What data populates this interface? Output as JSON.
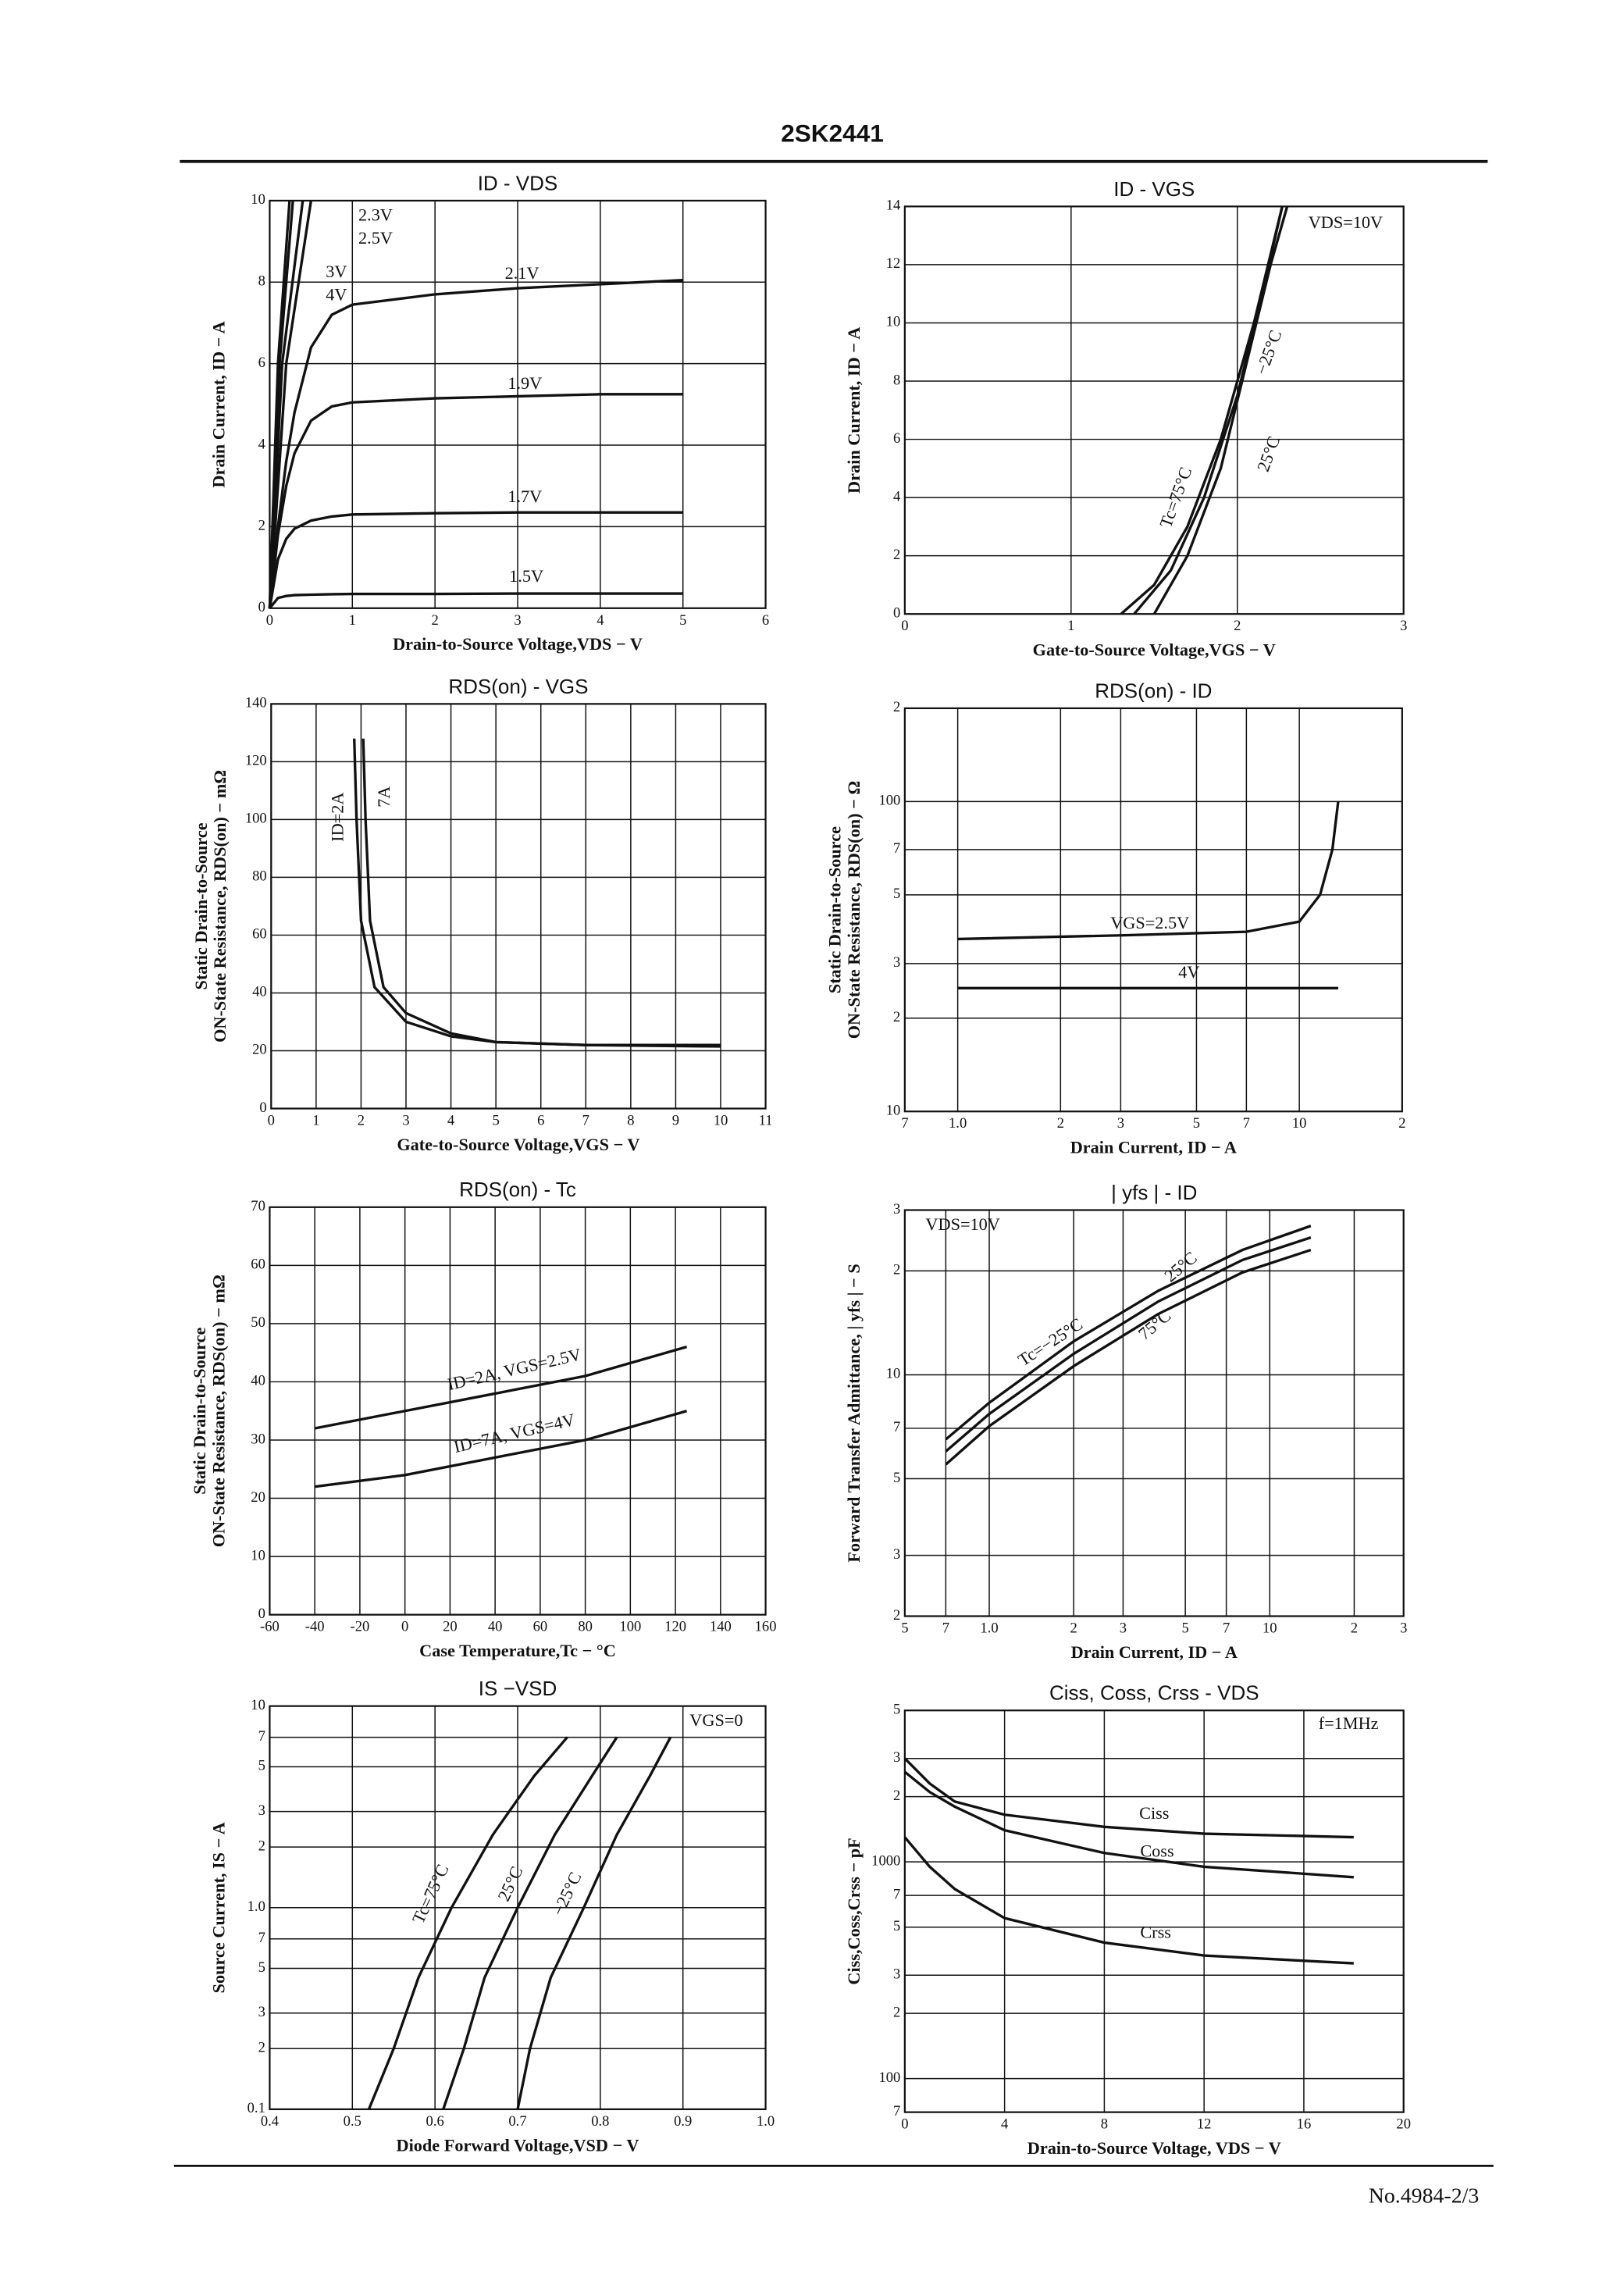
{
  "header": {
    "title": "2SK2441"
  },
  "footer": {
    "text": "No.4984-2/3"
  },
  "chart_data": [
    {
      "type": "line",
      "title": "ID  -  VDS",
      "xlabel": "Drain-to-Source Voltage,VDS − V",
      "ylabel": [
        "Drain Current, ID − A"
      ],
      "color": "#111",
      "grid": true,
      "xlim": [
        0,
        6
      ],
      "xticks": [
        0,
        1,
        2,
        3,
        4,
        5,
        6
      ],
      "ylim": [
        0,
        10
      ],
      "yticks": [
        0,
        2,
        4,
        6,
        8,
        10
      ],
      "series": [
        {
          "name": "1.5V",
          "x": [
            0,
            0.1,
            0.2,
            0.3,
            0.5,
            0.75,
            1,
            2,
            3,
            4,
            5
          ],
          "values": [
            0,
            0.25,
            0.3,
            0.32,
            0.33,
            0.34,
            0.35,
            0.35,
            0.36,
            0.36,
            0.36
          ]
        },
        {
          "name": "1.7V",
          "x": [
            0,
            0.1,
            0.2,
            0.3,
            0.5,
            0.75,
            1,
            2,
            3,
            4,
            5
          ],
          "values": [
            0,
            1.2,
            1.7,
            1.95,
            2.15,
            2.25,
            2.3,
            2.33,
            2.35,
            2.35,
            2.35
          ]
        },
        {
          "name": "1.9V",
          "x": [
            0,
            0.1,
            0.2,
            0.3,
            0.5,
            0.75,
            1,
            2,
            3,
            4,
            5
          ],
          "values": [
            0,
            1.8,
            3,
            3.8,
            4.6,
            4.95,
            5.05,
            5.15,
            5.2,
            5.25,
            5.25
          ]
        },
        {
          "name": "2.1V",
          "x": [
            0,
            0.1,
            0.2,
            0.3,
            0.5,
            0.75,
            1,
            2,
            3,
            4,
            5
          ],
          "values": [
            0,
            2,
            3.6,
            4.8,
            6.4,
            7.2,
            7.45,
            7.7,
            7.85,
            7.95,
            8.05
          ]
        },
        {
          "name": "2.3V",
          "x": [
            0,
            0.2,
            0.5
          ],
          "values": [
            0,
            6,
            10
          ]
        },
        {
          "name": "2.5V",
          "x": [
            0,
            0.15,
            0.4
          ],
          "values": [
            0,
            6,
            10
          ]
        },
        {
          "name": "3V",
          "x": [
            0,
            0.12,
            0.28
          ],
          "values": [
            0,
            6,
            10
          ]
        },
        {
          "name": "4V",
          "x": [
            0,
            0.1,
            0.24
          ],
          "values": [
            0,
            6,
            10
          ]
        }
      ]
    },
    {
      "type": "line",
      "title": "ID  -  VGS",
      "xlabel": "Gate-to-Source Voltage,VGS − V",
      "ylabel": [
        "Drain Current, ID − A"
      ],
      "color": "#111",
      "grid": true,
      "xlim": [
        0,
        3
      ],
      "xticks": [
        0,
        1,
        2,
        3
      ],
      "ylim": [
        0,
        14
      ],
      "yticks": [
        0,
        2,
        4,
        6,
        8,
        10,
        12,
        14
      ],
      "annotations": [
        "VDS=10V"
      ],
      "series": [
        {
          "name": "Tc=75°C",
          "x": [
            1.3,
            1.5,
            1.7,
            1.9,
            2.1,
            2.27
          ],
          "values": [
            0,
            1,
            3,
            6,
            10,
            14
          ]
        },
        {
          "name": "25°C",
          "x": [
            1.38,
            1.6,
            1.8,
            2,
            2.15,
            2.27
          ],
          "values": [
            0,
            1.5,
            4,
            7.5,
            11,
            14
          ]
        },
        {
          "name": "−25°C",
          "x": [
            1.5,
            1.7,
            1.9,
            2.05,
            2.2,
            2.3
          ],
          "values": [
            0,
            2,
            5,
            8.5,
            12,
            14
          ]
        }
      ]
    },
    {
      "type": "line",
      "title": "RDS(on)  -  VGS",
      "xlabel": "Gate-to-Source Voltage,VGS − V",
      "ylabel": [
        "Static Drain-to-Source",
        "ON-State Resistance, RDS(on) − mΩ"
      ],
      "color": "#111",
      "grid": true,
      "xlim": [
        0,
        11
      ],
      "xticks": [
        0,
        1,
        2,
        3,
        4,
        5,
        6,
        7,
        8,
        9,
        10,
        11
      ],
      "ylim": [
        0,
        140
      ],
      "yticks": [
        0,
        20,
        40,
        60,
        80,
        100,
        120,
        140
      ],
      "series": [
        {
          "name": "ID=2A",
          "x": [
            1.85,
            1.9,
            2,
            2.3,
            3,
            4,
            5,
            7,
            10
          ],
          "values": [
            128,
            100,
            65,
            42,
            30,
            25,
            23,
            22,
            22
          ]
        },
        {
          "name": "7A",
          "x": [
            2.05,
            2.1,
            2.2,
            2.5,
            3,
            4,
            5,
            7,
            10
          ],
          "values": [
            128,
            100,
            65,
            42,
            33,
            26,
            23,
            22,
            21.5
          ]
        }
      ]
    },
    {
      "type": "line",
      "title": "RDS(on)  -  ID",
      "xlabel": "Drain Current, ID − A",
      "ylabel": [
        "Static Drain-to-Source",
        "ON-State Resistance, RDS(on) − Ω"
      ],
      "color": "#111",
      "grid": true,
      "xlog": true,
      "ylog": true,
      "xlim": [
        0.7,
        20
      ],
      "xticks": [
        {
          "value": 0.7,
          "label": "7"
        },
        {
          "value": 1,
          "label": "1.0"
        },
        2,
        3,
        5,
        7,
        10,
        {
          "value": 20,
          "label": "2"
        }
      ],
      "ylim": [
        10,
        200
      ],
      "yticks": [
        10,
        {
          "value": 20,
          "label": "2"
        },
        {
          "value": 30,
          "label": "3"
        },
        {
          "value": 50,
          "label": "5"
        },
        {
          "value": 70,
          "label": "7"
        },
        100,
        {
          "value": 200,
          "label": "2"
        }
      ],
      "series": [
        {
          "name": "VGS=2.5V",
          "x": [
            1,
            3,
            7,
            10,
            11.5,
            12.5,
            13
          ],
          "values": [
            36,
            37,
            38,
            41,
            50,
            70,
            100
          ]
        },
        {
          "name": "4V",
          "x": [
            1,
            13
          ],
          "values": [
            25,
            25
          ]
        }
      ]
    },
    {
      "type": "line",
      "title": "RDS(on)  -  Tc",
      "xlabel": "Case Temperature,Tc − °C",
      "ylabel": [
        "Static Drain-to-Source",
        "ON-State Resistance, RDS(on) − mΩ"
      ],
      "color": "#111",
      "grid": true,
      "xlim": [
        -60,
        160
      ],
      "xticks": [
        -60,
        -40,
        -20,
        0,
        20,
        40,
        60,
        80,
        100,
        120,
        140,
        160
      ],
      "ylim": [
        0,
        70
      ],
      "yticks": [
        0,
        10,
        20,
        30,
        40,
        50,
        60,
        70
      ],
      "series": [
        {
          "name": "ID=2A, VGS=2.5V",
          "x": [
            -40,
            0,
            40,
            80,
            125
          ],
          "values": [
            32,
            35,
            38,
            41,
            46
          ]
        },
        {
          "name": "ID=7A, VGS=4V",
          "x": [
            -40,
            0,
            40,
            80,
            125
          ],
          "values": [
            22,
            24,
            27,
            30,
            35
          ]
        }
      ]
    },
    {
      "type": "line",
      "title": "| yfs |  -  ID",
      "xlabel": "Drain Current, ID − A",
      "ylabel": [
        "Forward Transfer Admittance, | yfs | − S"
      ],
      "color": "#111",
      "grid": true,
      "xlog": true,
      "ylog": true,
      "xlim": [
        0.5,
        30
      ],
      "xticks": [
        {
          "value": 0.5,
          "label": "5"
        },
        {
          "value": 0.7,
          "label": "7"
        },
        {
          "value": 1,
          "label": "1.0"
        },
        2,
        3,
        5,
        7,
        10,
        {
          "value": 20,
          "label": "2"
        },
        {
          "value": 30,
          "label": "3"
        }
      ],
      "ylim": [
        2,
        30
      ],
      "yticks": [
        2,
        3,
        5,
        7,
        10,
        {
          "value": 20,
          "label": "2"
        },
        {
          "value": 30,
          "label": "3"
        }
      ],
      "annotations": [
        "VDS=10V"
      ],
      "series": [
        {
          "name": "Tc=−25°C",
          "x": [
            0.7,
            1,
            2,
            4,
            8,
            14
          ],
          "values": [
            6.5,
            8.3,
            12.5,
            17.5,
            23,
            27
          ]
        },
        {
          "name": "25°C",
          "x": [
            0.7,
            1,
            2,
            4,
            8,
            14
          ],
          "values": [
            6,
            7.7,
            11.5,
            16.3,
            21.5,
            25
          ]
        },
        {
          "name": "75°C",
          "x": [
            0.7,
            1,
            2,
            4,
            8,
            14
          ],
          "values": [
            5.5,
            7.1,
            10.6,
            15,
            19.8,
            23
          ]
        }
      ]
    },
    {
      "type": "line",
      "title": "IS  −VSD",
      "xlabel": "Diode Forward Voltage,VSD − V",
      "ylabel": [
        "Source Current, IS − A"
      ],
      "color": "#111",
      "grid": true,
      "ylog": true,
      "xlim": [
        0.4,
        1
      ],
      "xticks": [
        0.4,
        0.5,
        0.6,
        0.7,
        0.8,
        0.9,
        {
          "value": 1,
          "label": "1.0"
        }
      ],
      "ylim": [
        0.1,
        10
      ],
      "yticks": [
        0.1,
        {
          "value": 0.2,
          "label": "2"
        },
        {
          "value": 0.3,
          "label": "3"
        },
        {
          "value": 0.5,
          "label": "5"
        },
        {
          "value": 0.7,
          "label": "7"
        },
        {
          "value": 1,
          "label": "1.0"
        },
        2,
        3,
        5,
        7,
        10
      ],
      "annotations": [
        "VGS=0"
      ],
      "series": [
        {
          "name": "Tc=75°C",
          "x": [
            0.52,
            0.55,
            0.58,
            0.62,
            0.67,
            0.72,
            0.76
          ],
          "values": [
            0.1,
            0.2,
            0.45,
            1,
            2.3,
            4.5,
            7
          ]
        },
        {
          "name": "25°C",
          "x": [
            0.61,
            0.635,
            0.66,
            0.7,
            0.745,
            0.79,
            0.82
          ],
          "values": [
            0.1,
            0.2,
            0.45,
            1,
            2.3,
            4.5,
            7
          ]
        },
        {
          "name": "−25°C",
          "x": [
            0.7,
            0.715,
            0.74,
            0.78,
            0.82,
            0.86,
            0.885
          ],
          "values": [
            0.1,
            0.2,
            0.45,
            1,
            2.3,
            4.5,
            7
          ]
        }
      ]
    },
    {
      "type": "line",
      "title": "Ciss, Coss, Crss  -  VDS",
      "xlabel": "Drain-to-Source Voltage, VDS − V",
      "ylabel": [
        "Ciss,Coss,Crss − pF"
      ],
      "color": "#111",
      "grid": true,
      "ylog": true,
      "xlim": [
        0,
        20
      ],
      "xticks": [
        0,
        4,
        8,
        12,
        16,
        20
      ],
      "ylim": [
        70,
        5000
      ],
      "yticks": [
        {
          "value": 70,
          "label": "7"
        },
        100,
        {
          "value": 200,
          "label": "2"
        },
        {
          "value": 300,
          "label": "3"
        },
        {
          "value": 500,
          "label": "5"
        },
        {
          "value": 700,
          "label": "7"
        },
        1000,
        {
          "value": 2000,
          "label": "2"
        },
        {
          "value": 3000,
          "label": "3"
        },
        {
          "value": 5000,
          "label": "5"
        }
      ],
      "annotations": [
        "f=1MHz"
      ],
      "series": [
        {
          "name": "Ciss",
          "x": [
            0,
            1,
            2,
            4,
            8,
            12,
            18
          ],
          "values": [
            3000,
            2300,
            1900,
            1650,
            1450,
            1350,
            1300
          ]
        },
        {
          "name": "Coss",
          "x": [
            0,
            1,
            2,
            4,
            8,
            12,
            18
          ],
          "values": [
            2600,
            2100,
            1800,
            1400,
            1100,
            950,
            850
          ]
        },
        {
          "name": "Crss",
          "x": [
            0,
            1,
            2,
            4,
            8,
            12,
            18
          ],
          "values": [
            1300,
            950,
            750,
            550,
            424,
            370,
            340
          ]
        }
      ]
    }
  ]
}
